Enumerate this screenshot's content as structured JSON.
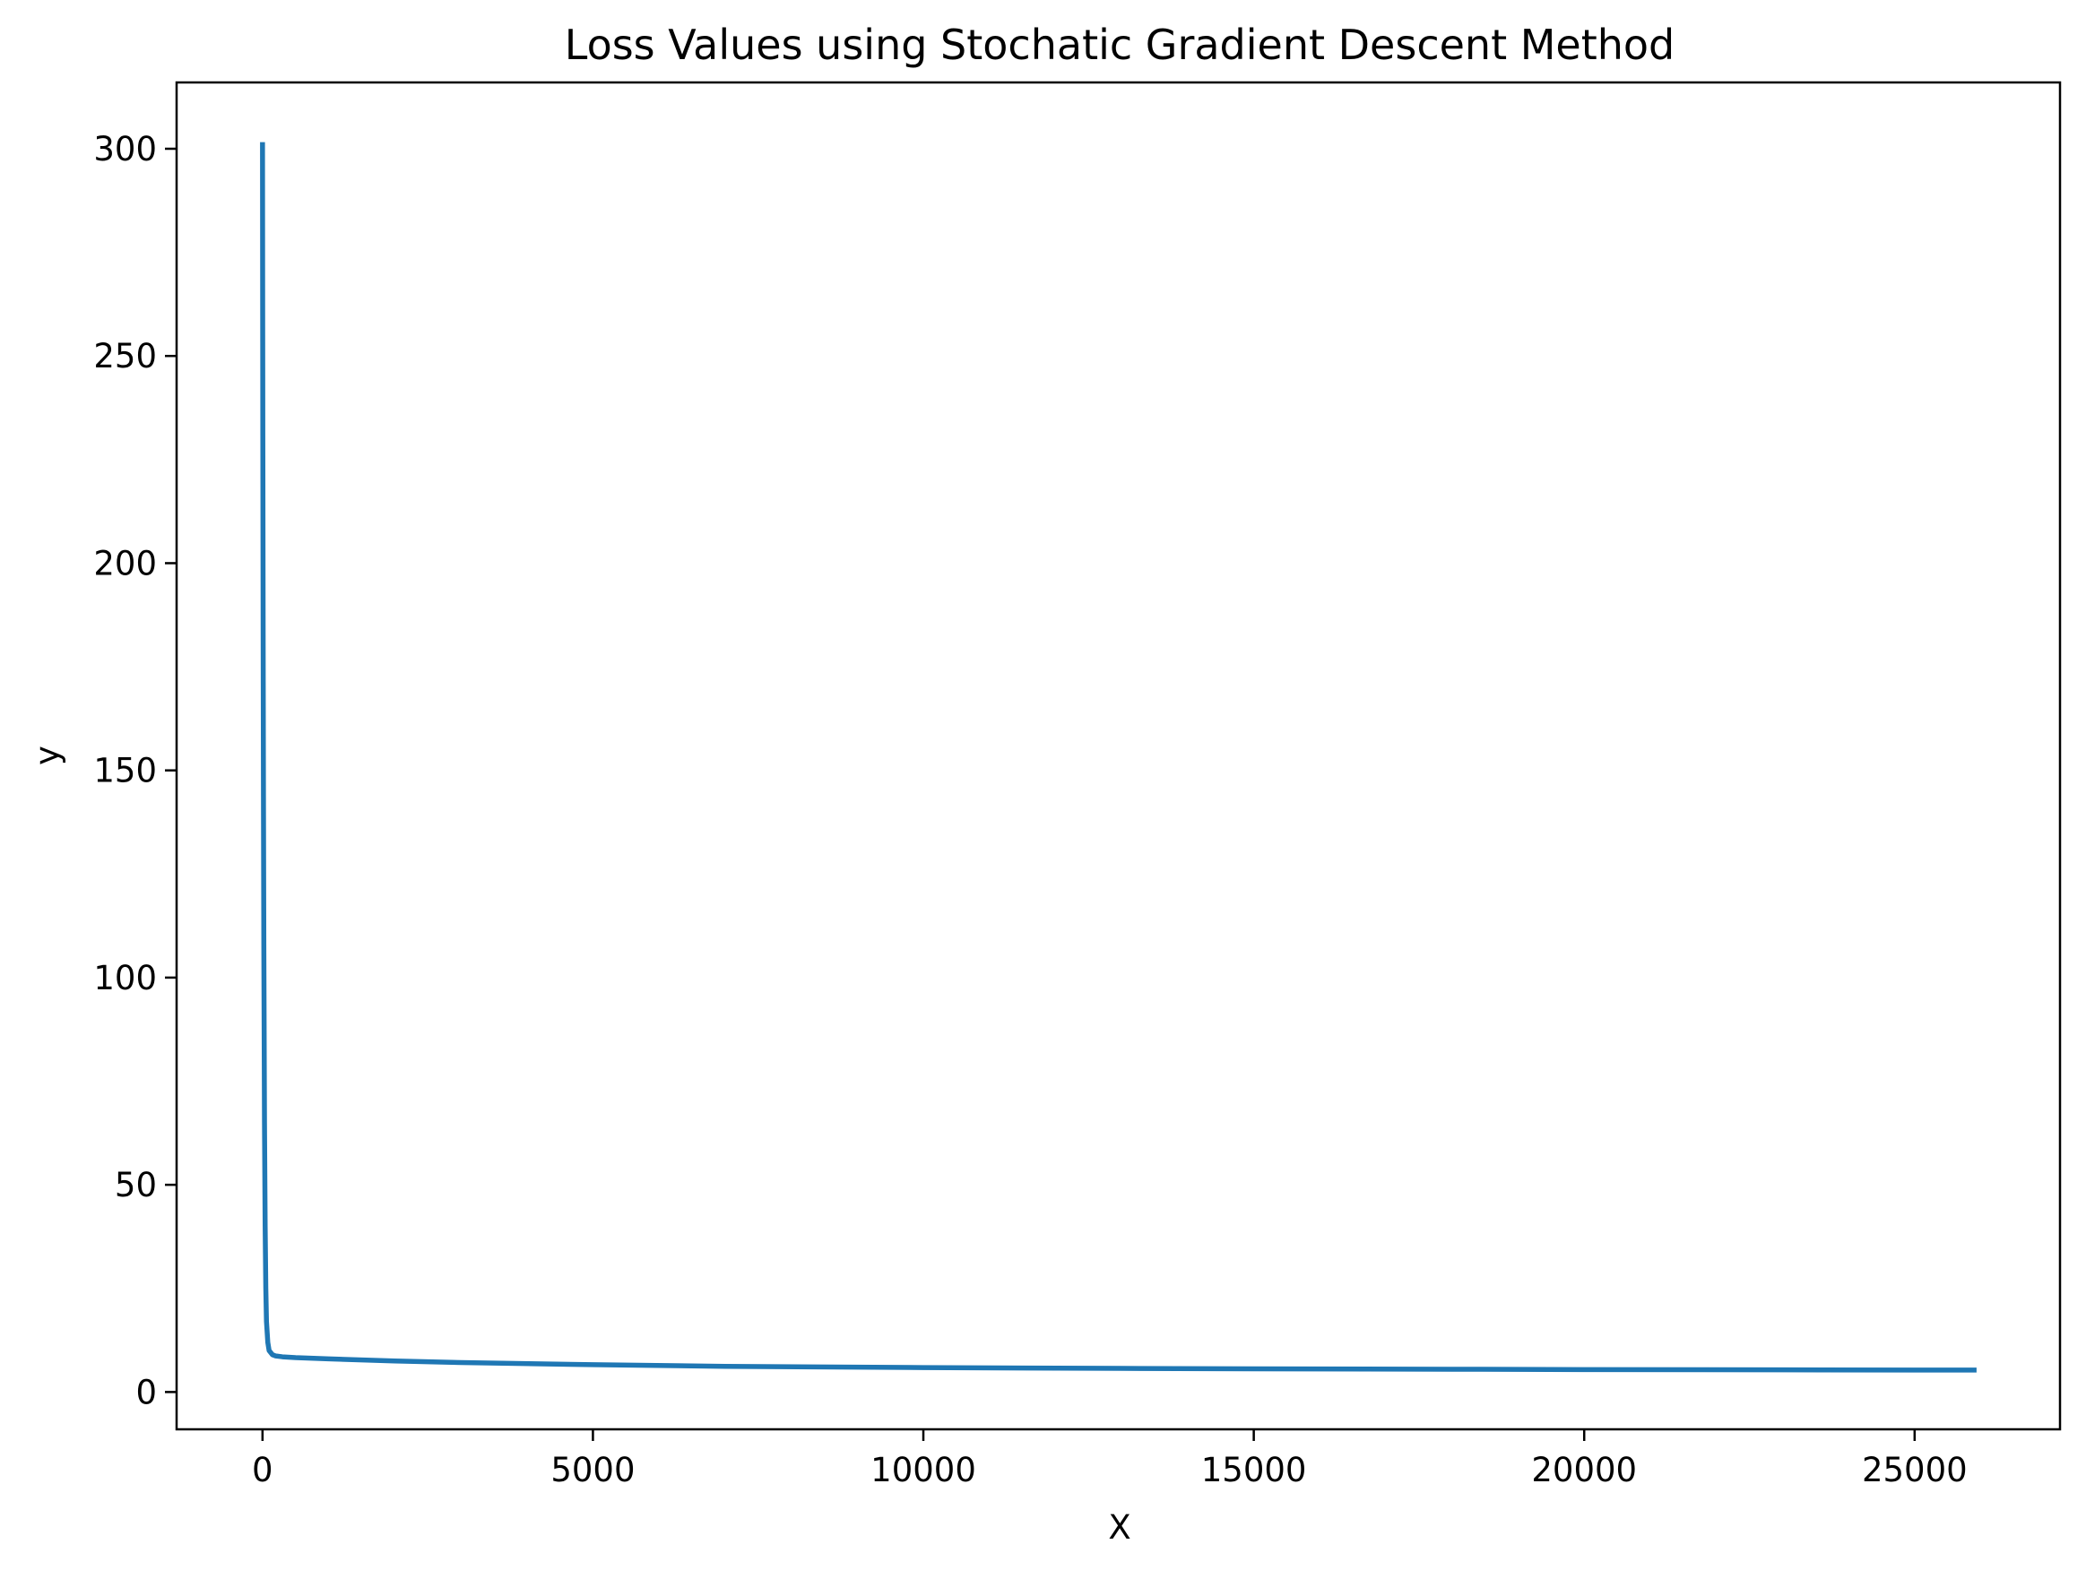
{
  "chart_data": {
    "type": "line",
    "title": "Loss Values using Stochatic Gradient Descent Method",
    "xlabel": "X",
    "ylabel": "y",
    "xlim": [
      -1300,
      27200
    ],
    "ylim": [
      -9,
      316
    ],
    "xticks": [
      0,
      5000,
      10000,
      15000,
      20000,
      25000
    ],
    "xtick_labels": [
      "0",
      "5000",
      "10000",
      "15000",
      "20000",
      "25000"
    ],
    "yticks": [
      0,
      50,
      100,
      150,
      200,
      250,
      300
    ],
    "ytick_labels": [
      "0",
      "50",
      "100",
      "150",
      "200",
      "250",
      "300"
    ],
    "grid": false,
    "legend": "none",
    "series": [
      {
        "color": "#1f77b4",
        "x": [
          0,
          2,
          5,
          10,
          15,
          20,
          30,
          40,
          50,
          60,
          80,
          100,
          150,
          200,
          300,
          500,
          1000,
          2000,
          3000,
          5000,
          7000,
          10000,
          13000,
          15000,
          18000,
          20000,
          23000,
          25000,
          25900
        ],
        "y": [
          301,
          270,
          230,
          180,
          140,
          108,
          65,
          40,
          25,
          17,
          12,
          10,
          9,
          8.7,
          8.5,
          8.3,
          8.0,
          7.5,
          7.1,
          6.6,
          6.2,
          5.9,
          5.7,
          5.6,
          5.5,
          5.4,
          5.35,
          5.3,
          5.3
        ]
      }
    ]
  }
}
